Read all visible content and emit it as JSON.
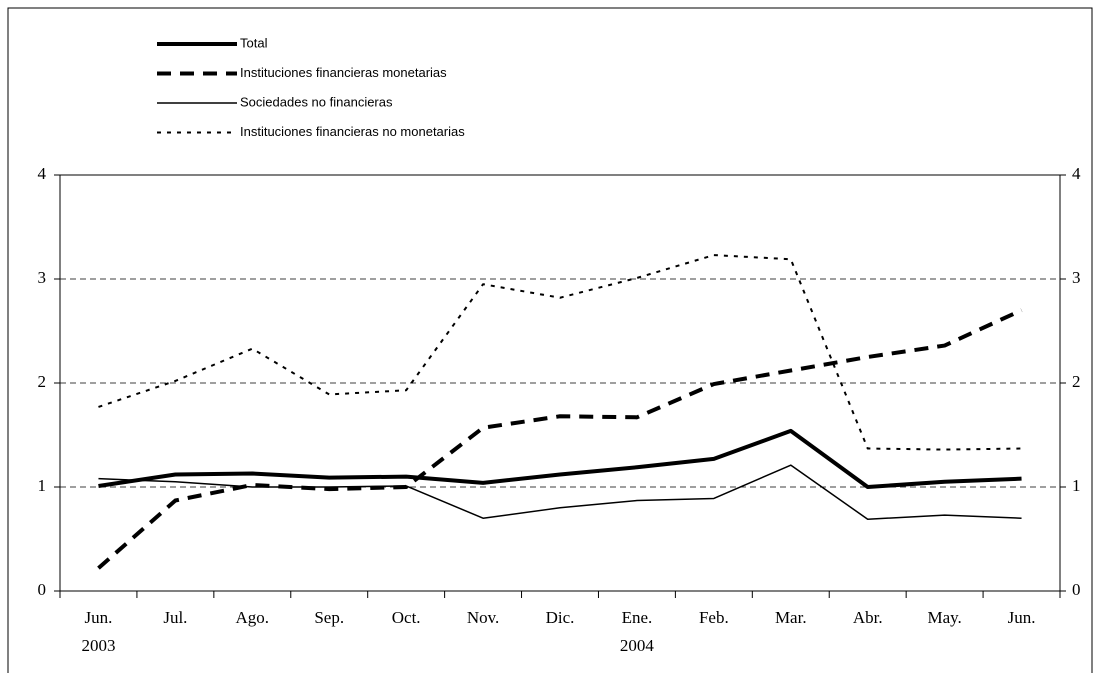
{
  "chart_data": {
    "type": "line",
    "categories": [
      "Jun.",
      "Jul.",
      "Ago.",
      "Sep.",
      "Oct.",
      "Nov.",
      "Dic.",
      "Ene.",
      "Feb.",
      "Mar.",
      "Abr.",
      "May.",
      "Jun."
    ],
    "category_years": [
      "2003",
      null,
      null,
      null,
      null,
      null,
      null,
      "2004",
      null,
      null,
      null,
      null,
      null
    ],
    "series": [
      {
        "name": "Total",
        "color": "#000000",
        "style": "solid",
        "width": 4,
        "values": [
          1.01,
          1.12,
          1.13,
          1.09,
          1.1,
          1.04,
          1.12,
          1.19,
          1.27,
          1.54,
          1.0,
          1.05,
          1.08
        ]
      },
      {
        "name": "Instituciones financieras monetarias",
        "color": "#000000",
        "style": "dashed",
        "width": 4,
        "values": [
          0.22,
          0.87,
          1.02,
          0.98,
          1.0,
          1.57,
          1.68,
          1.67,
          1.99,
          2.12,
          2.25,
          2.36,
          2.7
        ]
      },
      {
        "name": "Sociedades no financieras",
        "color": "#000000",
        "style": "solid",
        "width": 1.5,
        "values": [
          1.08,
          1.05,
          1.0,
          1.0,
          1.01,
          0.7,
          0.8,
          0.87,
          0.89,
          1.21,
          0.69,
          0.73,
          0.7
        ]
      },
      {
        "name": "Instituciones financieras no monetarias",
        "color": "#000000",
        "style": "dotted",
        "width": 2,
        "values": [
          1.77,
          2.02,
          2.33,
          1.89,
          1.93,
          2.95,
          2.82,
          3.01,
          3.23,
          3.19,
          1.37,
          1.36,
          1.37
        ]
      }
    ],
    "ylim": [
      0,
      4
    ],
    "yticks": [
      0,
      1,
      2,
      3,
      4
    ],
    "y2lim": [
      0,
      4
    ],
    "y2ticks": [
      0,
      1,
      2,
      3,
      4
    ],
    "grid": true
  }
}
